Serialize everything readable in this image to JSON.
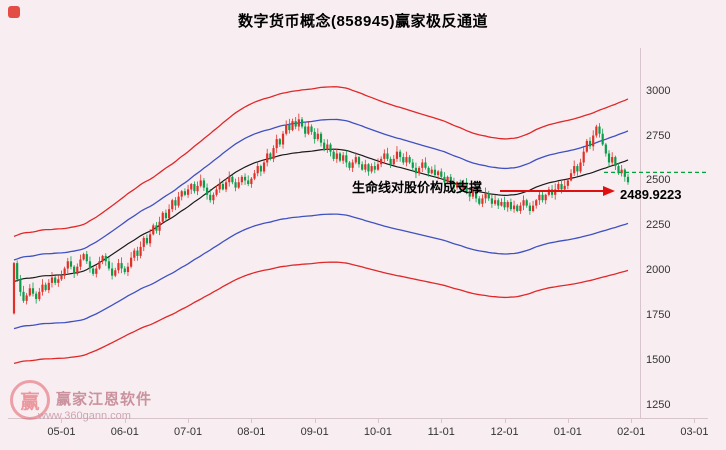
{
  "title": "数字货币概念(858945)赢家极反通道",
  "annotation": {
    "support_text": "生命线对股价构成支撑",
    "price_label": "2489.9223"
  },
  "watermark": {
    "logo_char": "赢",
    "brand": "赢家江恩软件",
    "site": "www.360gann.com"
  },
  "chart_data": {
    "type": "candlestick",
    "title": "数字货币概念(858945)赢家极反通道",
    "ylim": [
      1178,
      3237
    ],
    "y_ticks": [
      1250,
      1500,
      1750,
      2000,
      2250,
      2500,
      2750,
      3000
    ],
    "x_ticks": [
      {
        "label": "05-01",
        "i": 15
      },
      {
        "label": "06-01",
        "i": 35
      },
      {
        "label": "07-01",
        "i": 55
      },
      {
        "label": "08-01",
        "i": 75
      },
      {
        "label": "09-01",
        "i": 95
      },
      {
        "label": "10-01",
        "i": 115
      },
      {
        "label": "11-01",
        "i": 135
      },
      {
        "label": "12-01",
        "i": 155
      },
      {
        "label": "01-01",
        "i": 175
      },
      {
        "label": "02-01",
        "i": 195
      },
      {
        "label": "03-01",
        "i": 215
      }
    ],
    "candles": {
      "first_open": 1760,
      "closes": [
        2040,
        1950,
        1880,
        1830,
        1860,
        1900,
        1870,
        1840,
        1880,
        1920,
        1890,
        1930,
        1960,
        1930,
        1950,
        1970,
        2010,
        2050,
        2020,
        1980,
        2020,
        2060,
        2090,
        2050,
        2010,
        1980,
        2010,
        2050,
        2080,
        2050,
        2010,
        1970,
        2000,
        2040,
        2010,
        1990,
        2020,
        2070,
        2110,
        2080,
        2130,
        2180,
        2150,
        2200,
        2250,
        2220,
        2270,
        2320,
        2290,
        2340,
        2390,
        2360,
        2410,
        2440,
        2420,
        2450,
        2480,
        2440,
        2470,
        2500,
        2460,
        2420,
        2390,
        2420,
        2450,
        2480,
        2450,
        2490,
        2520,
        2490,
        2460,
        2490,
        2520,
        2500,
        2480,
        2510,
        2540,
        2580,
        2550,
        2600,
        2650,
        2620,
        2680,
        2730,
        2700,
        2760,
        2810,
        2780,
        2830,
        2800,
        2840,
        2800,
        2760,
        2800,
        2770,
        2730,
        2760,
        2710,
        2670,
        2700,
        2660,
        2620,
        2650,
        2610,
        2640,
        2600,
        2570,
        2600,
        2630,
        2590,
        2560,
        2590,
        2550,
        2580,
        2560,
        2590,
        2620,
        2650,
        2620,
        2590,
        2620,
        2660,
        2630,
        2600,
        2630,
        2600,
        2570,
        2540,
        2570,
        2600,
        2570,
        2540,
        2560,
        2530,
        2550,
        2520,
        2490,
        2520,
        2490,
        2460,
        2490,
        2450,
        2480,
        2440,
        2410,
        2440,
        2400,
        2370,
        2400,
        2430,
        2400,
        2370,
        2390,
        2360,
        2380,
        2350,
        2380,
        2340,
        2360,
        2330,
        2360,
        2390,
        2360,
        2330,
        2360,
        2390,
        2420,
        2390,
        2420,
        2450,
        2420,
        2450,
        2480,
        2450,
        2470,
        2500,
        2540,
        2580,
        2550,
        2600,
        2660,
        2720,
        2690,
        2750,
        2800,
        2760,
        2700,
        2650,
        2600,
        2630,
        2580,
        2540,
        2560,
        2520,
        2489.92
      ],
      "up_color": "#e03028",
      "down_color": "#0a9e4a"
    },
    "channels": {
      "window_half": 20,
      "upper_red_mult": 1.13,
      "upper_blue_mult": 1.062,
      "lower_blue_mult": 0.865,
      "lower_red_mult": 0.765,
      "red_color": "#e02828",
      "blue_color": "#3f51c1",
      "mid_color": "#1a1a1a"
    },
    "dashed_support_line": {
      "price": 2545,
      "color": "#00a43c"
    },
    "arrow_color": "#e01010",
    "axis_color": "#d8c4cc"
  }
}
